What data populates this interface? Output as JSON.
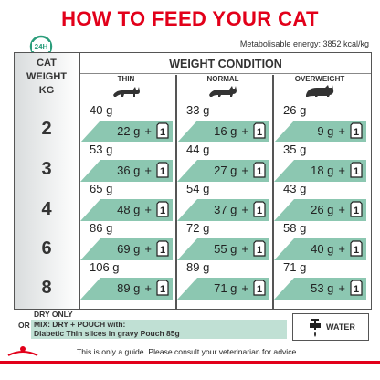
{
  "title": "HOW TO FEED YOUR CAT",
  "badge_label": "24H",
  "energy": "Metabolisable energy: 3852 kcal/kg",
  "header_cat": [
    "CAT",
    "WEIGHT",
    "KG"
  ],
  "weight_condition": "WEIGHT CONDITION",
  "columns": [
    "THIN",
    "NORMAL",
    "OVERWEIGHT"
  ],
  "rows": [
    {
      "kg": "2",
      "cells": [
        {
          "dry": "40 g",
          "mix": "22 g",
          "pouches": "1"
        },
        {
          "dry": "33 g",
          "mix": "16 g",
          "pouches": "1"
        },
        {
          "dry": "26 g",
          "mix": "9 g",
          "pouches": "1"
        }
      ]
    },
    {
      "kg": "3",
      "cells": [
        {
          "dry": "53 g",
          "mix": "36 g",
          "pouches": "1"
        },
        {
          "dry": "44 g",
          "mix": "27 g",
          "pouches": "1"
        },
        {
          "dry": "35 g",
          "mix": "18 g",
          "pouches": "1"
        }
      ]
    },
    {
      "kg": "4",
      "cells": [
        {
          "dry": "65 g",
          "mix": "48 g",
          "pouches": "1"
        },
        {
          "dry": "54 g",
          "mix": "37 g",
          "pouches": "1"
        },
        {
          "dry": "43 g",
          "mix": "26 g",
          "pouches": "1"
        }
      ]
    },
    {
      "kg": "6",
      "cells": [
        {
          "dry": "86 g",
          "mix": "69 g",
          "pouches": "1"
        },
        {
          "dry": "72 g",
          "mix": "55 g",
          "pouches": "1"
        },
        {
          "dry": "58 g",
          "mix": "40 g",
          "pouches": "1"
        }
      ]
    },
    {
      "kg": "8",
      "cells": [
        {
          "dry": "106 g",
          "mix": "89 g",
          "pouches": "1"
        },
        {
          "dry": "89 g",
          "mix": "71 g",
          "pouches": "1"
        },
        {
          "dry": "71 g",
          "mix": "53 g",
          "pouches": "1"
        }
      ]
    }
  ],
  "plus": "+",
  "dry_only": "DRY ONLY",
  "or": "OR",
  "mix_line1": "MIX: DRY + POUCH with:",
  "mix_line2": "Diabetic Thin slices in gravy Pouch 85g",
  "water": "WATER",
  "guide": "This is only a guide. Please consult your veterinarian for advice.",
  "colors": {
    "red": "#e2001a",
    "mint": "#8cc7b1"
  },
  "icons": [
    "clock-24h-icon",
    "thin-cat-icon",
    "normal-cat-icon",
    "overweight-cat-icon",
    "pouch-icon",
    "water-tap-icon",
    "royal-canin-logo"
  ]
}
